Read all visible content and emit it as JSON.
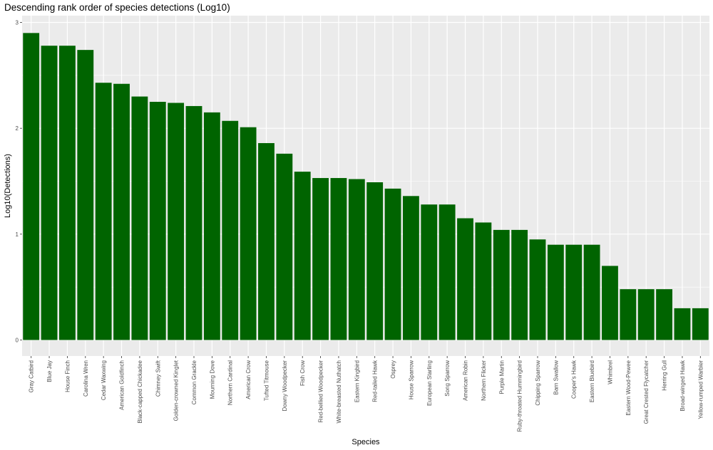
{
  "chart_data": {
    "type": "bar",
    "title": "Descending rank order of species detections (Log10)",
    "xlabel": "Species",
    "ylabel": "Log10(Detections)",
    "ylim": [
      0,
      3
    ],
    "yticks": [
      "0",
      "1",
      "2",
      "3"
    ],
    "grid": true,
    "bar_color": "#006400",
    "panel_color": "#ebebeb",
    "categories": [
      "Gray Catbird",
      "Blue Jay",
      "House Finch",
      "Carolina Wren",
      "Cedar Waxwing",
      "American Goldfinch",
      "Black-capped Chickadee",
      "Chimney Swift",
      "Golden-crowned Kinglet",
      "Common Grackle",
      "Mourning Dove",
      "Northern Cardinal",
      "American Crow",
      "Tufted Titmouse",
      "Downy Woodpecker",
      "Fish Crow",
      "Red-bellied Woodpecker",
      "White-breasted Nuthatch",
      "Eastern Kingbird",
      "Red-tailed Hawk",
      "Osprey",
      "House Sparrow",
      "European Starling",
      "Song Sparrow",
      "American Robin",
      "Northern Flicker",
      "Purple Martin",
      "Ruby-throated Hummingbird",
      "Chipping Sparrow",
      "Barn Swallow",
      "Cooper's Hawk",
      "Eastern Bluebird",
      "Whimbrel",
      "Eastern Wood-Pewee",
      "Great Crested Flycatcher",
      "Herring Gull",
      "Broad-winged Hawk",
      "Yellow-rumped Warbler"
    ],
    "values": [
      2.9,
      2.78,
      2.78,
      2.74,
      2.43,
      2.42,
      2.3,
      2.25,
      2.24,
      2.21,
      2.15,
      2.07,
      2.01,
      1.86,
      1.76,
      1.59,
      1.53,
      1.53,
      1.52,
      1.49,
      1.43,
      1.36,
      1.28,
      1.28,
      1.15,
      1.11,
      1.04,
      1.04,
      0.95,
      0.9,
      0.9,
      0.9,
      0.7,
      0.48,
      0.48,
      0.48,
      0.3,
      0.3
    ]
  }
}
